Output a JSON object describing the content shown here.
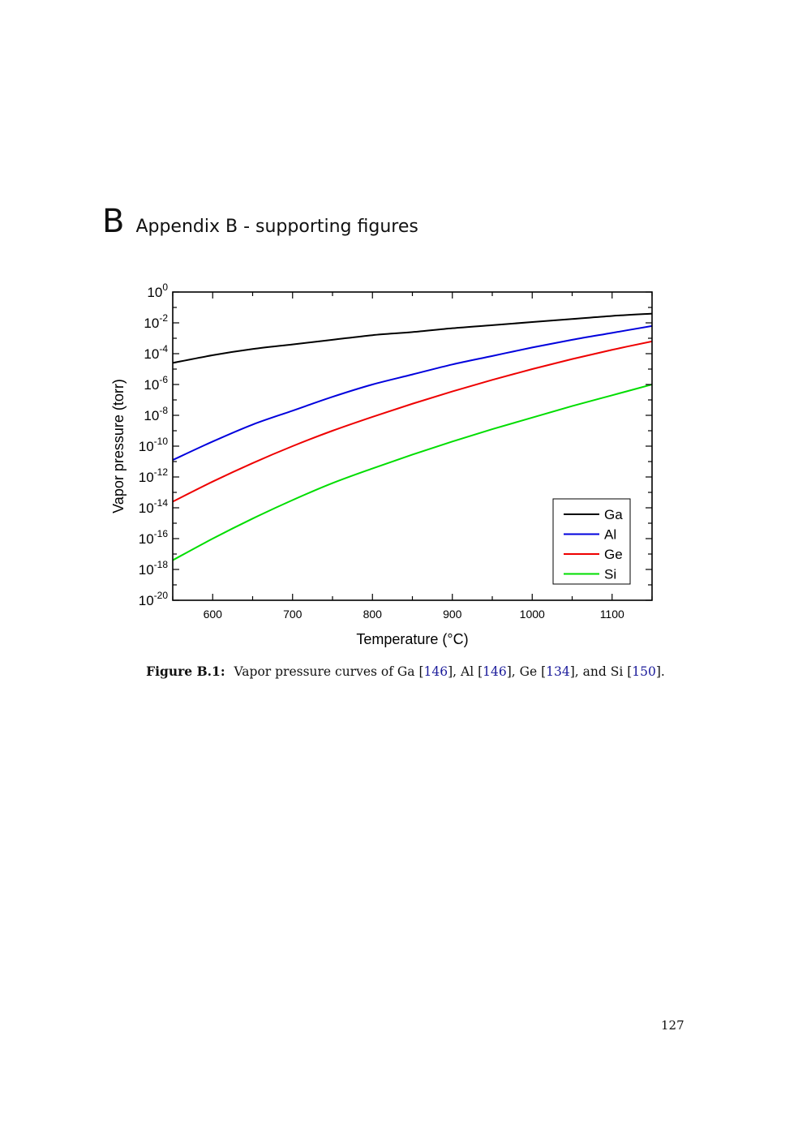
{
  "section": {
    "letter": "B",
    "title": "Appendix B - supporting figures"
  },
  "caption": {
    "label": "Figure B.1:",
    "parts": [
      {
        "text": " Vapor pressure curves of Ga [",
        "ref": false
      },
      {
        "text": "146",
        "ref": true
      },
      {
        "text": "], Al [",
        "ref": false
      },
      {
        "text": "146",
        "ref": true
      },
      {
        "text": "], Ge [",
        "ref": false
      },
      {
        "text": "134",
        "ref": true
      },
      {
        "text": "], and Si [",
        "ref": false
      },
      {
        "text": "150",
        "ref": true
      },
      {
        "text": "].",
        "ref": false
      }
    ]
  },
  "page_number": "127",
  "chart_data": {
    "type": "line",
    "xlabel": "Temperature (°C)",
    "ylabel": "Vapor pressure (torr)",
    "xlim": [
      550,
      1150
    ],
    "ylim_log10": [
      -20,
      0
    ],
    "y_scale": "log",
    "x_ticks": [
      600,
      700,
      800,
      900,
      1000,
      1100
    ],
    "y_tick_exponents": [
      0,
      -2,
      -4,
      -6,
      -8,
      -10,
      -12,
      -14,
      -16,
      -18,
      -20
    ],
    "legend_position": "bottom-right",
    "grid": false,
    "series": [
      {
        "name": "Ga",
        "color": "#000000",
        "x": [
          550,
          600,
          650,
          700,
          750,
          800,
          850,
          900,
          950,
          1000,
          1050,
          1100,
          1150
        ],
        "y_log10": [
          -4.6,
          -4.1,
          -3.7,
          -3.4,
          -3.1,
          -2.8,
          -2.6,
          -2.35,
          -2.15,
          -1.95,
          -1.75,
          -1.55,
          -1.4
        ]
      },
      {
        "name": "Al",
        "color": "#0000dd",
        "x": [
          550,
          600,
          650,
          700,
          750,
          800,
          850,
          900,
          950,
          1000,
          1050,
          1100,
          1150
        ],
        "y_log10": [
          -10.9,
          -9.7,
          -8.6,
          -7.7,
          -6.8,
          -6.0,
          -5.35,
          -4.7,
          -4.15,
          -3.6,
          -3.1,
          -2.65,
          -2.2
        ]
      },
      {
        "name": "Ge",
        "color": "#ee0000",
        "x": [
          550,
          600,
          650,
          700,
          750,
          800,
          850,
          900,
          950,
          1000,
          1050,
          1100,
          1150
        ],
        "y_log10": [
          -13.6,
          -12.3,
          -11.1,
          -10.0,
          -9.0,
          -8.1,
          -7.25,
          -6.45,
          -5.7,
          -5.0,
          -4.35,
          -3.75,
          -3.2
        ]
      },
      {
        "name": "Si",
        "color": "#00dd00",
        "x": [
          550,
          600,
          650,
          700,
          750,
          800,
          850,
          900,
          950,
          1000,
          1050,
          1100,
          1150
        ],
        "y_log10": [
          -17.4,
          -16.0,
          -14.7,
          -13.5,
          -12.4,
          -11.45,
          -10.55,
          -9.7,
          -8.9,
          -8.15,
          -7.4,
          -6.7,
          -6.0
        ]
      }
    ]
  }
}
